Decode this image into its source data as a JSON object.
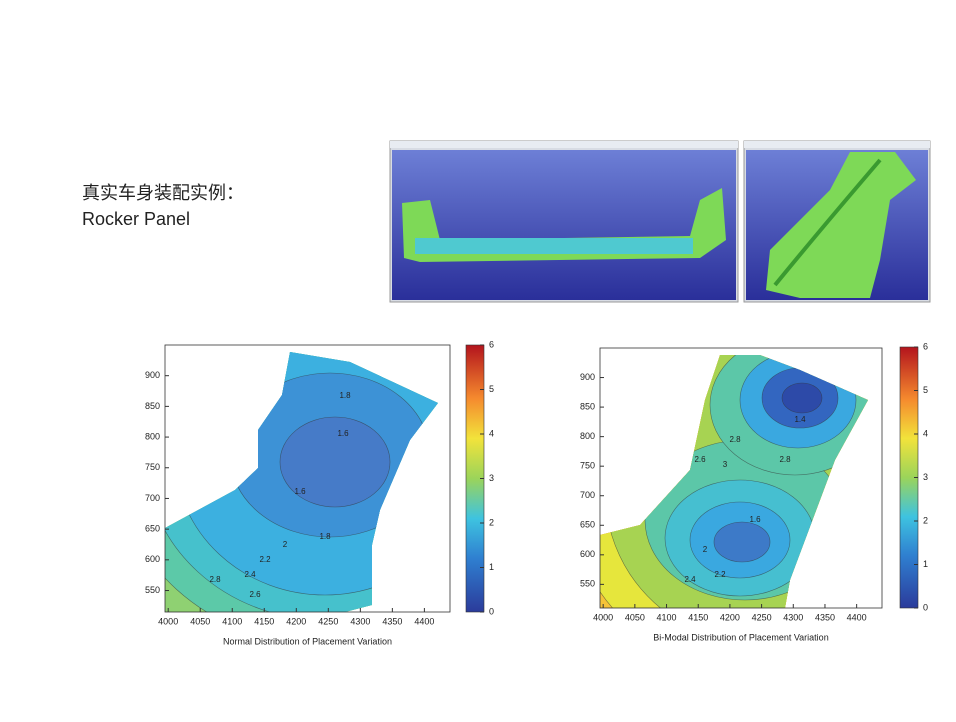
{
  "slide": {
    "title": "真实车身装配实例：",
    "subtitle": "Rocker Panel"
  },
  "plots": [
    {
      "caption": "Normal Distribution of Placement Variation",
      "xlim": [
        3995,
        4440
      ],
      "xticks": [
        4000,
        4050,
        4100,
        4150,
        4200,
        4250,
        4300,
        4350,
        4400
      ],
      "ylim": [
        515,
        950
      ],
      "yticks": [
        550,
        600,
        650,
        700,
        750,
        800,
        850,
        900
      ],
      "colorbar_lim": [
        0,
        6
      ],
      "colorbar_ticks": [
        0,
        1,
        2,
        3,
        4,
        5,
        6
      ],
      "contour_labels": [
        1.8,
        1.6,
        1.6,
        1.8,
        2,
        2.2,
        2.4,
        2.6,
        2.8
      ]
    },
    {
      "caption": "Bi-Modal Distribution of Placement Variation",
      "xlim": [
        3995,
        4440
      ],
      "xticks": [
        4000,
        4050,
        4100,
        4150,
        4200,
        4250,
        4300,
        4350,
        4400
      ],
      "ylim": [
        510,
        950
      ],
      "yticks": [
        550,
        600,
        650,
        700,
        750,
        800,
        850,
        900
      ],
      "colorbar_lim": [
        0,
        6
      ],
      "colorbar_ticks": [
        0,
        1,
        2,
        3,
        4,
        5,
        6
      ],
      "contour_labels": [
        2.8,
        2.6,
        2.8,
        1.6,
        2,
        2.2,
        2.4,
        3,
        1.4
      ]
    }
  ]
}
